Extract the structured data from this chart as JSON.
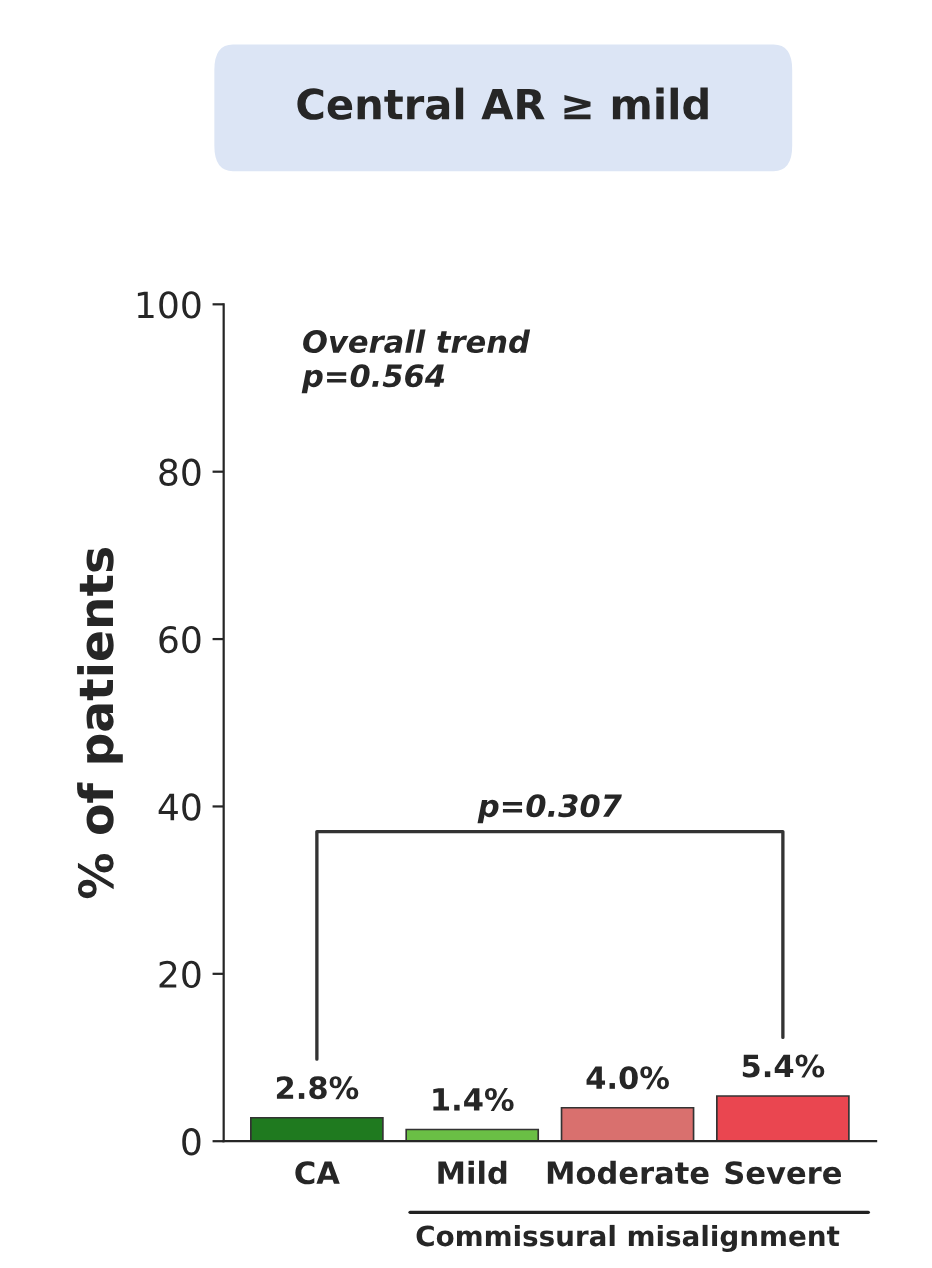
{
  "chart_data": {
    "type": "bar",
    "title": "Central AR ≥ mild",
    "ylabel": "% of patients",
    "categories": [
      "CA",
      "Mild",
      "Moderate",
      "Severe"
    ],
    "values": [
      2.8,
      1.4,
      4.0,
      5.4
    ],
    "colors": [
      "#1f7a1f",
      "#6abf45",
      "#d9706e",
      "#ea4650"
    ],
    "value_labels": [
      "2.8%",
      "1.4%",
      "4.0%",
      "5.4%"
    ],
    "ylim": [
      0,
      100
    ],
    "yticks": [
      0,
      20,
      40,
      60,
      80,
      100
    ],
    "grid": false,
    "annotations": [
      "Overall trend\np=0.564",
      "p=0.307",
      "Commissural misalignment"
    ]
  }
}
